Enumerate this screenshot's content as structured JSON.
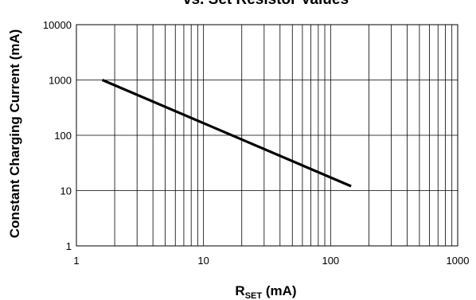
{
  "chart_data": {
    "type": "line",
    "title": "vs. Set Resistor Values",
    "xlabel": {
      "main": "R",
      "sub": "SET",
      "unit": " (mA)"
    },
    "ylabel": "Constant Charging Current (mA)",
    "x_scale": "log",
    "y_scale": "log",
    "xlim": [
      1,
      1000
    ],
    "ylim": [
      1,
      10000
    ],
    "x_ticks": [
      "1",
      "10",
      "100",
      "1000"
    ],
    "y_ticks": [
      "1",
      "10",
      "100",
      "1000",
      "10000"
    ],
    "grid": true,
    "legend": "none",
    "line_color": "#000000",
    "series": [
      {
        "x": [
          1.6,
          145
        ],
        "y": [
          1000,
          12
        ]
      }
    ]
  }
}
